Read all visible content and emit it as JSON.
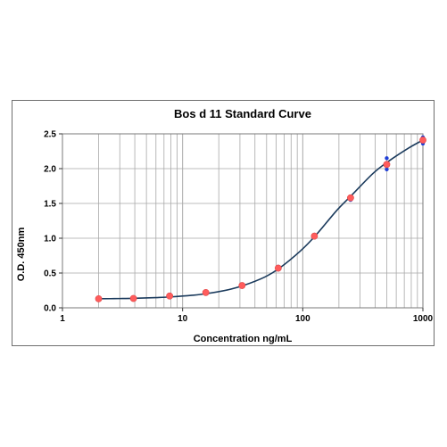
{
  "chart_data": {
    "type": "scatter",
    "title": "Bos d 11 Standard Curve",
    "xlabel": "Concentration ng/mL",
    "ylabel": "O.D. 450nm",
    "x_scale": "log",
    "xlim": [
      1,
      1000
    ],
    "ylim": [
      0,
      2.5
    ],
    "x_ticks": [
      "1",
      "10",
      "100",
      "1000"
    ],
    "y_ticks": [
      "0.0",
      "0.5",
      "1.0",
      "1.5",
      "2.0",
      "2.5"
    ],
    "grid": true,
    "legend": "none",
    "series": [
      {
        "kind": "replicate",
        "color": "#1f3fd6",
        "x": [
          2,
          3.9,
          7.8,
          15.6,
          31.25,
          62.5,
          125,
          250,
          500,
          1000
        ],
        "y": [
          0.14,
          0.13,
          0.19,
          0.23,
          0.33,
          0.59,
          1.05,
          1.6,
          2.15,
          2.45
        ]
      },
      {
        "kind": "replicate",
        "color": "#1f3fd6",
        "x": [
          2,
          3.9,
          7.8,
          15.6,
          31.25,
          62.5,
          125,
          250,
          500,
          1000
        ],
        "y": [
          0.12,
          0.14,
          0.15,
          0.21,
          0.31,
          0.55,
          1.01,
          1.55,
          1.99,
          2.36
        ]
      },
      {
        "kind": "mean",
        "color": "#ff5c5c",
        "x": [
          2,
          3.9,
          7.8,
          15.6,
          31.25,
          62.5,
          125,
          250,
          500,
          1000
        ],
        "y": [
          0.13,
          0.135,
          0.17,
          0.22,
          0.32,
          0.57,
          1.03,
          1.58,
          2.06,
          2.41
        ]
      }
    ],
    "fit_curve": {
      "color": "#1a3a5c",
      "x": [
        2,
        3,
        4,
        6,
        8,
        12,
        16,
        24,
        32,
        48,
        64,
        96,
        128,
        192,
        256,
        384,
        512,
        768,
        1000
      ],
      "y": [
        0.13,
        0.133,
        0.137,
        0.147,
        0.157,
        0.18,
        0.205,
        0.26,
        0.32,
        0.44,
        0.57,
        0.82,
        1.04,
        1.4,
        1.62,
        1.93,
        2.1,
        2.3,
        2.41
      ]
    }
  }
}
